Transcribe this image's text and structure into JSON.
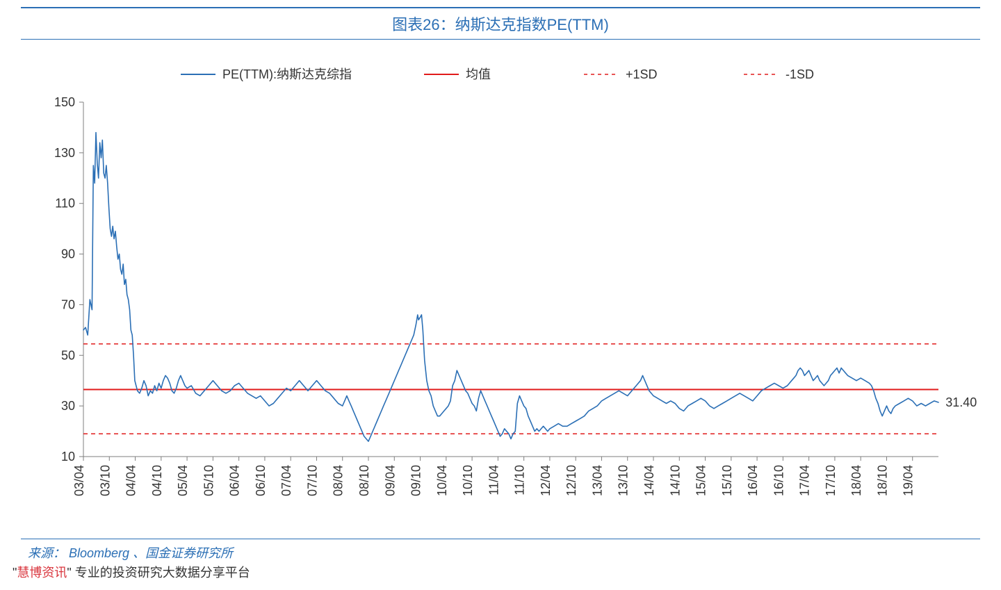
{
  "title": "图表26：纳斯达克指数PE(TTM)",
  "source": "来源： Bloomberg 、国金证券研究所",
  "footnote_prefix": "\"",
  "footnote_highlight": "慧博资讯",
  "footnote_rest": "\" 专业的投资研究大数据分享平台",
  "chart": {
    "type": "line",
    "background_color": "#ffffff",
    "axis_color": "#7f7f7f",
    "label_fontsize": 18,
    "legend": {
      "items": [
        {
          "label": "PE(TTM):纳斯达克综指",
          "stroke": "#2b6fb5",
          "dash": "none",
          "width": 2
        },
        {
          "label": "均值",
          "stroke": "#e11b1b",
          "dash": "none",
          "width": 2
        },
        {
          "label": "+1SD",
          "stroke": "#e11b1b",
          "dash": "5,5",
          "width": 1.5
        },
        {
          "label": "-1SD",
          "stroke": "#e11b1b",
          "dash": "5,5",
          "width": 1.5
        }
      ]
    },
    "y": {
      "min": 10,
      "max": 150,
      "ticks": [
        10,
        30,
        50,
        70,
        90,
        110,
        130,
        150
      ]
    },
    "x": {
      "min": 0,
      "max": 198,
      "tick_positions_months": [
        0,
        6,
        12,
        18,
        24,
        30,
        36,
        42,
        48,
        54,
        60,
        66,
        72,
        78,
        84,
        90,
        96,
        102,
        108,
        114,
        120,
        126,
        132,
        138,
        144,
        150,
        156,
        162,
        168,
        174,
        180,
        186,
        192
      ],
      "tick_labels": [
        "03/04",
        "03/10",
        "04/04",
        "04/10",
        "05/04",
        "05/10",
        "06/04",
        "06/10",
        "07/04",
        "07/10",
        "08/04",
        "08/10",
        "09/04",
        "09/10",
        "10/04",
        "10/10",
        "11/04",
        "11/10",
        "12/04",
        "12/10",
        "13/04",
        "13/10",
        "14/04",
        "14/10",
        "15/04",
        "15/10",
        "16/04",
        "16/10",
        "17/04",
        "17/10",
        "18/04",
        "18/10",
        "19/04"
      ]
    },
    "mean_value": 36.5,
    "plus_1sd_value": 54.5,
    "minus_1sd_value": 19.0,
    "end_label": "31.40",
    "end_label_x_month": 199,
    "end_label_y_value": 31.4,
    "series_main": {
      "stroke": "#2b6fb5",
      "width": 1.6,
      "points": [
        [
          0,
          60
        ],
        [
          0.5,
          61
        ],
        [
          1,
          58
        ],
        [
          1.5,
          72
        ],
        [
          2,
          68
        ],
        [
          2.3,
          125
        ],
        [
          2.6,
          118
        ],
        [
          2.9,
          138
        ],
        [
          3.2,
          126
        ],
        [
          3.5,
          120
        ],
        [
          3.8,
          134
        ],
        [
          4.1,
          128
        ],
        [
          4.4,
          135
        ],
        [
          4.7,
          122
        ],
        [
          5,
          120
        ],
        [
          5.3,
          125
        ],
        [
          5.6,
          118
        ],
        [
          5.9,
          108
        ],
        [
          6.2,
          100
        ],
        [
          6.5,
          97
        ],
        [
          6.8,
          101
        ],
        [
          7.1,
          96
        ],
        [
          7.4,
          99
        ],
        [
          7.7,
          93
        ],
        [
          8,
          88
        ],
        [
          8.3,
          90
        ],
        [
          8.6,
          84
        ],
        [
          8.9,
          82
        ],
        [
          9.2,
          86
        ],
        [
          9.5,
          78
        ],
        [
          9.8,
          80
        ],
        [
          10.1,
          74
        ],
        [
          10.4,
          72
        ],
        [
          10.7,
          68
        ],
        [
          11,
          60
        ],
        [
          11.3,
          58
        ],
        [
          11.6,
          50
        ],
        [
          11.9,
          40
        ],
        [
          12.2,
          38
        ],
        [
          12.5,
          36
        ],
        [
          13,
          35
        ],
        [
          13.5,
          37
        ],
        [
          14,
          40
        ],
        [
          14.5,
          38
        ],
        [
          15,
          34
        ],
        [
          15.5,
          36
        ],
        [
          16,
          35
        ],
        [
          16.5,
          38
        ],
        [
          17,
          36
        ],
        [
          17.5,
          39
        ],
        [
          18,
          37
        ],
        [
          18.5,
          40
        ],
        [
          19,
          42
        ],
        [
          19.5,
          41
        ],
        [
          20,
          39
        ],
        [
          20.5,
          36
        ],
        [
          21,
          35
        ],
        [
          21.5,
          37
        ],
        [
          22,
          40
        ],
        [
          22.5,
          42
        ],
        [
          23,
          40
        ],
        [
          23.5,
          38
        ],
        [
          24,
          37
        ],
        [
          25,
          38
        ],
        [
          26,
          35
        ],
        [
          27,
          34
        ],
        [
          28,
          36
        ],
        [
          29,
          38
        ],
        [
          30,
          40
        ],
        [
          31,
          38
        ],
        [
          32,
          36
        ],
        [
          33,
          35
        ],
        [
          34,
          36
        ],
        [
          35,
          38
        ],
        [
          36,
          39
        ],
        [
          37,
          37
        ],
        [
          38,
          35
        ],
        [
          39,
          34
        ],
        [
          40,
          33
        ],
        [
          41,
          34
        ],
        [
          42,
          32
        ],
        [
          43,
          30
        ],
        [
          44,
          31
        ],
        [
          45,
          33
        ],
        [
          46,
          35
        ],
        [
          47,
          37
        ],
        [
          48,
          36
        ],
        [
          49,
          38
        ],
        [
          50,
          40
        ],
        [
          51,
          38
        ],
        [
          52,
          36
        ],
        [
          53,
          38
        ],
        [
          54,
          40
        ],
        [
          55,
          38
        ],
        [
          56,
          36
        ],
        [
          57,
          35
        ],
        [
          58,
          33
        ],
        [
          59,
          31
        ],
        [
          60,
          30
        ],
        [
          60.5,
          32
        ],
        [
          61,
          34
        ],
        [
          61.5,
          32
        ],
        [
          62,
          30
        ],
        [
          62.5,
          28
        ],
        [
          63,
          26
        ],
        [
          63.5,
          24
        ],
        [
          64,
          22
        ],
        [
          64.5,
          20
        ],
        [
          65,
          18
        ],
        [
          65.5,
          17
        ],
        [
          66,
          16
        ],
        [
          66.5,
          18
        ],
        [
          67,
          20
        ],
        [
          67.5,
          22
        ],
        [
          68,
          24
        ],
        [
          68.5,
          26
        ],
        [
          69,
          28
        ],
        [
          69.5,
          30
        ],
        [
          70,
          32
        ],
        [
          70.5,
          34
        ],
        [
          71,
          36
        ],
        [
          71.5,
          38
        ],
        [
          72,
          40
        ],
        [
          72.5,
          42
        ],
        [
          73,
          44
        ],
        [
          73.5,
          46
        ],
        [
          74,
          48
        ],
        [
          74.5,
          50
        ],
        [
          75,
          52
        ],
        [
          75.5,
          54
        ],
        [
          76,
          56
        ],
        [
          76.5,
          58
        ],
        [
          77,
          62
        ],
        [
          77.4,
          66
        ],
        [
          77.6,
          64
        ],
        [
          78,
          65
        ],
        [
          78.3,
          66
        ],
        [
          78.6,
          60
        ],
        [
          79,
          48
        ],
        [
          79.5,
          40
        ],
        [
          80,
          36
        ],
        [
          80.5,
          34
        ],
        [
          81,
          30
        ],
        [
          81.5,
          28
        ],
        [
          82,
          26
        ],
        [
          82.5,
          26
        ],
        [
          83,
          27
        ],
        [
          83.5,
          28
        ],
        [
          84,
          29
        ],
        [
          84.5,
          30
        ],
        [
          85,
          32
        ],
        [
          85.5,
          38
        ],
        [
          86,
          40
        ],
        [
          86.5,
          44
        ],
        [
          87,
          42
        ],
        [
          87.5,
          40
        ],
        [
          88,
          38
        ],
        [
          88.5,
          36
        ],
        [
          89,
          35
        ],
        [
          89.5,
          33
        ],
        [
          90,
          31
        ],
        [
          90.5,
          30
        ],
        [
          91,
          28
        ],
        [
          91.5,
          33
        ],
        [
          92,
          36
        ],
        [
          92.5,
          34
        ],
        [
          93,
          32
        ],
        [
          93.5,
          30
        ],
        [
          94,
          28
        ],
        [
          94.5,
          26
        ],
        [
          95,
          24
        ],
        [
          95.5,
          22
        ],
        [
          96,
          20
        ],
        [
          96.5,
          18
        ],
        [
          97,
          19
        ],
        [
          97.5,
          21
        ],
        [
          98,
          20
        ],
        [
          98.5,
          19
        ],
        [
          99,
          17
        ],
        [
          99.5,
          19
        ],
        [
          100,
          20
        ],
        [
          100.5,
          31
        ],
        [
          101,
          34
        ],
        [
          101.5,
          32
        ],
        [
          102,
          30
        ],
        [
          102.5,
          29
        ],
        [
          103,
          26
        ],
        [
          103.5,
          24
        ],
        [
          104,
          22
        ],
        [
          104.5,
          20
        ],
        [
          105,
          21
        ],
        [
          105.5,
          20
        ],
        [
          106,
          21
        ],
        [
          106.5,
          22
        ],
        [
          107,
          21
        ],
        [
          107.5,
          20
        ],
        [
          108,
          21
        ],
        [
          109,
          22
        ],
        [
          110,
          23
        ],
        [
          111,
          22
        ],
        [
          112,
          22
        ],
        [
          113,
          23
        ],
        [
          114,
          24
        ],
        [
          115,
          25
        ],
        [
          116,
          26
        ],
        [
          117,
          28
        ],
        [
          118,
          29
        ],
        [
          119,
          30
        ],
        [
          120,
          32
        ],
        [
          121,
          33
        ],
        [
          122,
          34
        ],
        [
          123,
          35
        ],
        [
          124,
          36
        ],
        [
          125,
          35
        ],
        [
          126,
          34
        ],
        [
          127,
          36
        ],
        [
          128,
          38
        ],
        [
          129,
          40
        ],
        [
          129.5,
          42
        ],
        [
          130,
          40
        ],
        [
          130.5,
          38
        ],
        [
          131,
          36
        ],
        [
          131.5,
          35
        ],
        [
          132,
          34
        ],
        [
          133,
          33
        ],
        [
          134,
          32
        ],
        [
          135,
          31
        ],
        [
          136,
          32
        ],
        [
          137,
          31
        ],
        [
          138,
          29
        ],
        [
          139,
          28
        ],
        [
          140,
          30
        ],
        [
          141,
          31
        ],
        [
          142,
          32
        ],
        [
          143,
          33
        ],
        [
          144,
          32
        ],
        [
          145,
          30
        ],
        [
          146,
          29
        ],
        [
          147,
          30
        ],
        [
          148,
          31
        ],
        [
          149,
          32
        ],
        [
          150,
          33
        ],
        [
          151,
          34
        ],
        [
          152,
          35
        ],
        [
          153,
          34
        ],
        [
          154,
          33
        ],
        [
          155,
          32
        ],
        [
          156,
          34
        ],
        [
          157,
          36
        ],
        [
          158,
          37
        ],
        [
          159,
          38
        ],
        [
          160,
          39
        ],
        [
          161,
          38
        ],
        [
          162,
          37
        ],
        [
          163,
          38
        ],
        [
          164,
          40
        ],
        [
          165,
          42
        ],
        [
          165.5,
          44
        ],
        [
          166,
          45
        ],
        [
          166.5,
          44
        ],
        [
          167,
          42
        ],
        [
          167.5,
          43
        ],
        [
          168,
          44
        ],
        [
          168.5,
          42
        ],
        [
          169,
          40
        ],
        [
          169.5,
          41
        ],
        [
          170,
          42
        ],
        [
          170.5,
          40
        ],
        [
          171,
          39
        ],
        [
          171.5,
          38
        ],
        [
          172,
          39
        ],
        [
          172.5,
          40
        ],
        [
          173,
          42
        ],
        [
          173.5,
          43
        ],
        [
          174,
          44
        ],
        [
          174.5,
          45
        ],
        [
          175,
          43
        ],
        [
          175.5,
          45
        ],
        [
          176,
          44
        ],
        [
          176.5,
          43
        ],
        [
          177,
          42
        ],
        [
          178,
          41
        ],
        [
          179,
          40
        ],
        [
          180,
          41
        ],
        [
          181,
          40
        ],
        [
          182,
          39
        ],
        [
          182.5,
          38
        ],
        [
          183,
          36
        ],
        [
          183.5,
          33
        ],
        [
          184,
          31
        ],
        [
          184.5,
          28
        ],
        [
          185,
          26
        ],
        [
          185.5,
          28
        ],
        [
          186,
          30
        ],
        [
          186.5,
          28
        ],
        [
          187,
          27
        ],
        [
          187.5,
          29
        ],
        [
          188,
          30
        ],
        [
          189,
          31
        ],
        [
          190,
          32
        ],
        [
          191,
          33
        ],
        [
          192,
          32
        ],
        [
          193,
          30
        ],
        [
          194,
          31
        ],
        [
          195,
          30
        ],
        [
          196,
          31
        ],
        [
          197,
          32
        ],
        [
          198,
          31.4
        ]
      ]
    }
  }
}
